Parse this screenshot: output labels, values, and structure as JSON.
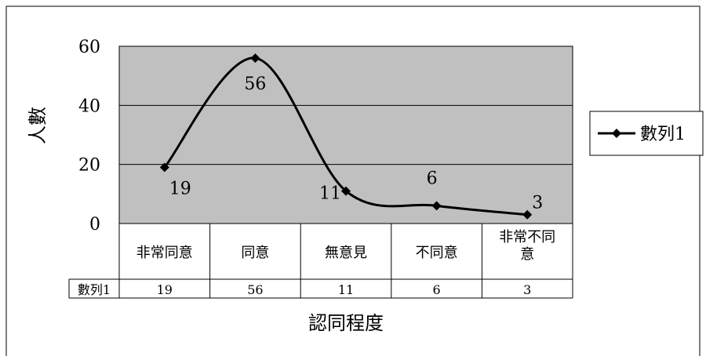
{
  "chart_data": {
    "type": "line",
    "title": "",
    "xlabel": "認同程度",
    "ylabel": "人數",
    "categories": [
      "非常同意",
      "同意",
      "無意見",
      "不同意",
      "非常不同意"
    ],
    "series": [
      {
        "name": "數列1",
        "values": [
          19,
          56,
          11,
          6,
          3
        ]
      }
    ],
    "ylim": [
      0,
      60
    ],
    "yticks": [
      "0",
      "20",
      "40",
      "60"
    ],
    "grid": true,
    "smooth": true,
    "data_labels": true,
    "legend_position": "right",
    "data_table": true,
    "colors": {
      "plot_background": "#c0c0c0",
      "line": "#000000",
      "gridline": "#000000"
    }
  }
}
